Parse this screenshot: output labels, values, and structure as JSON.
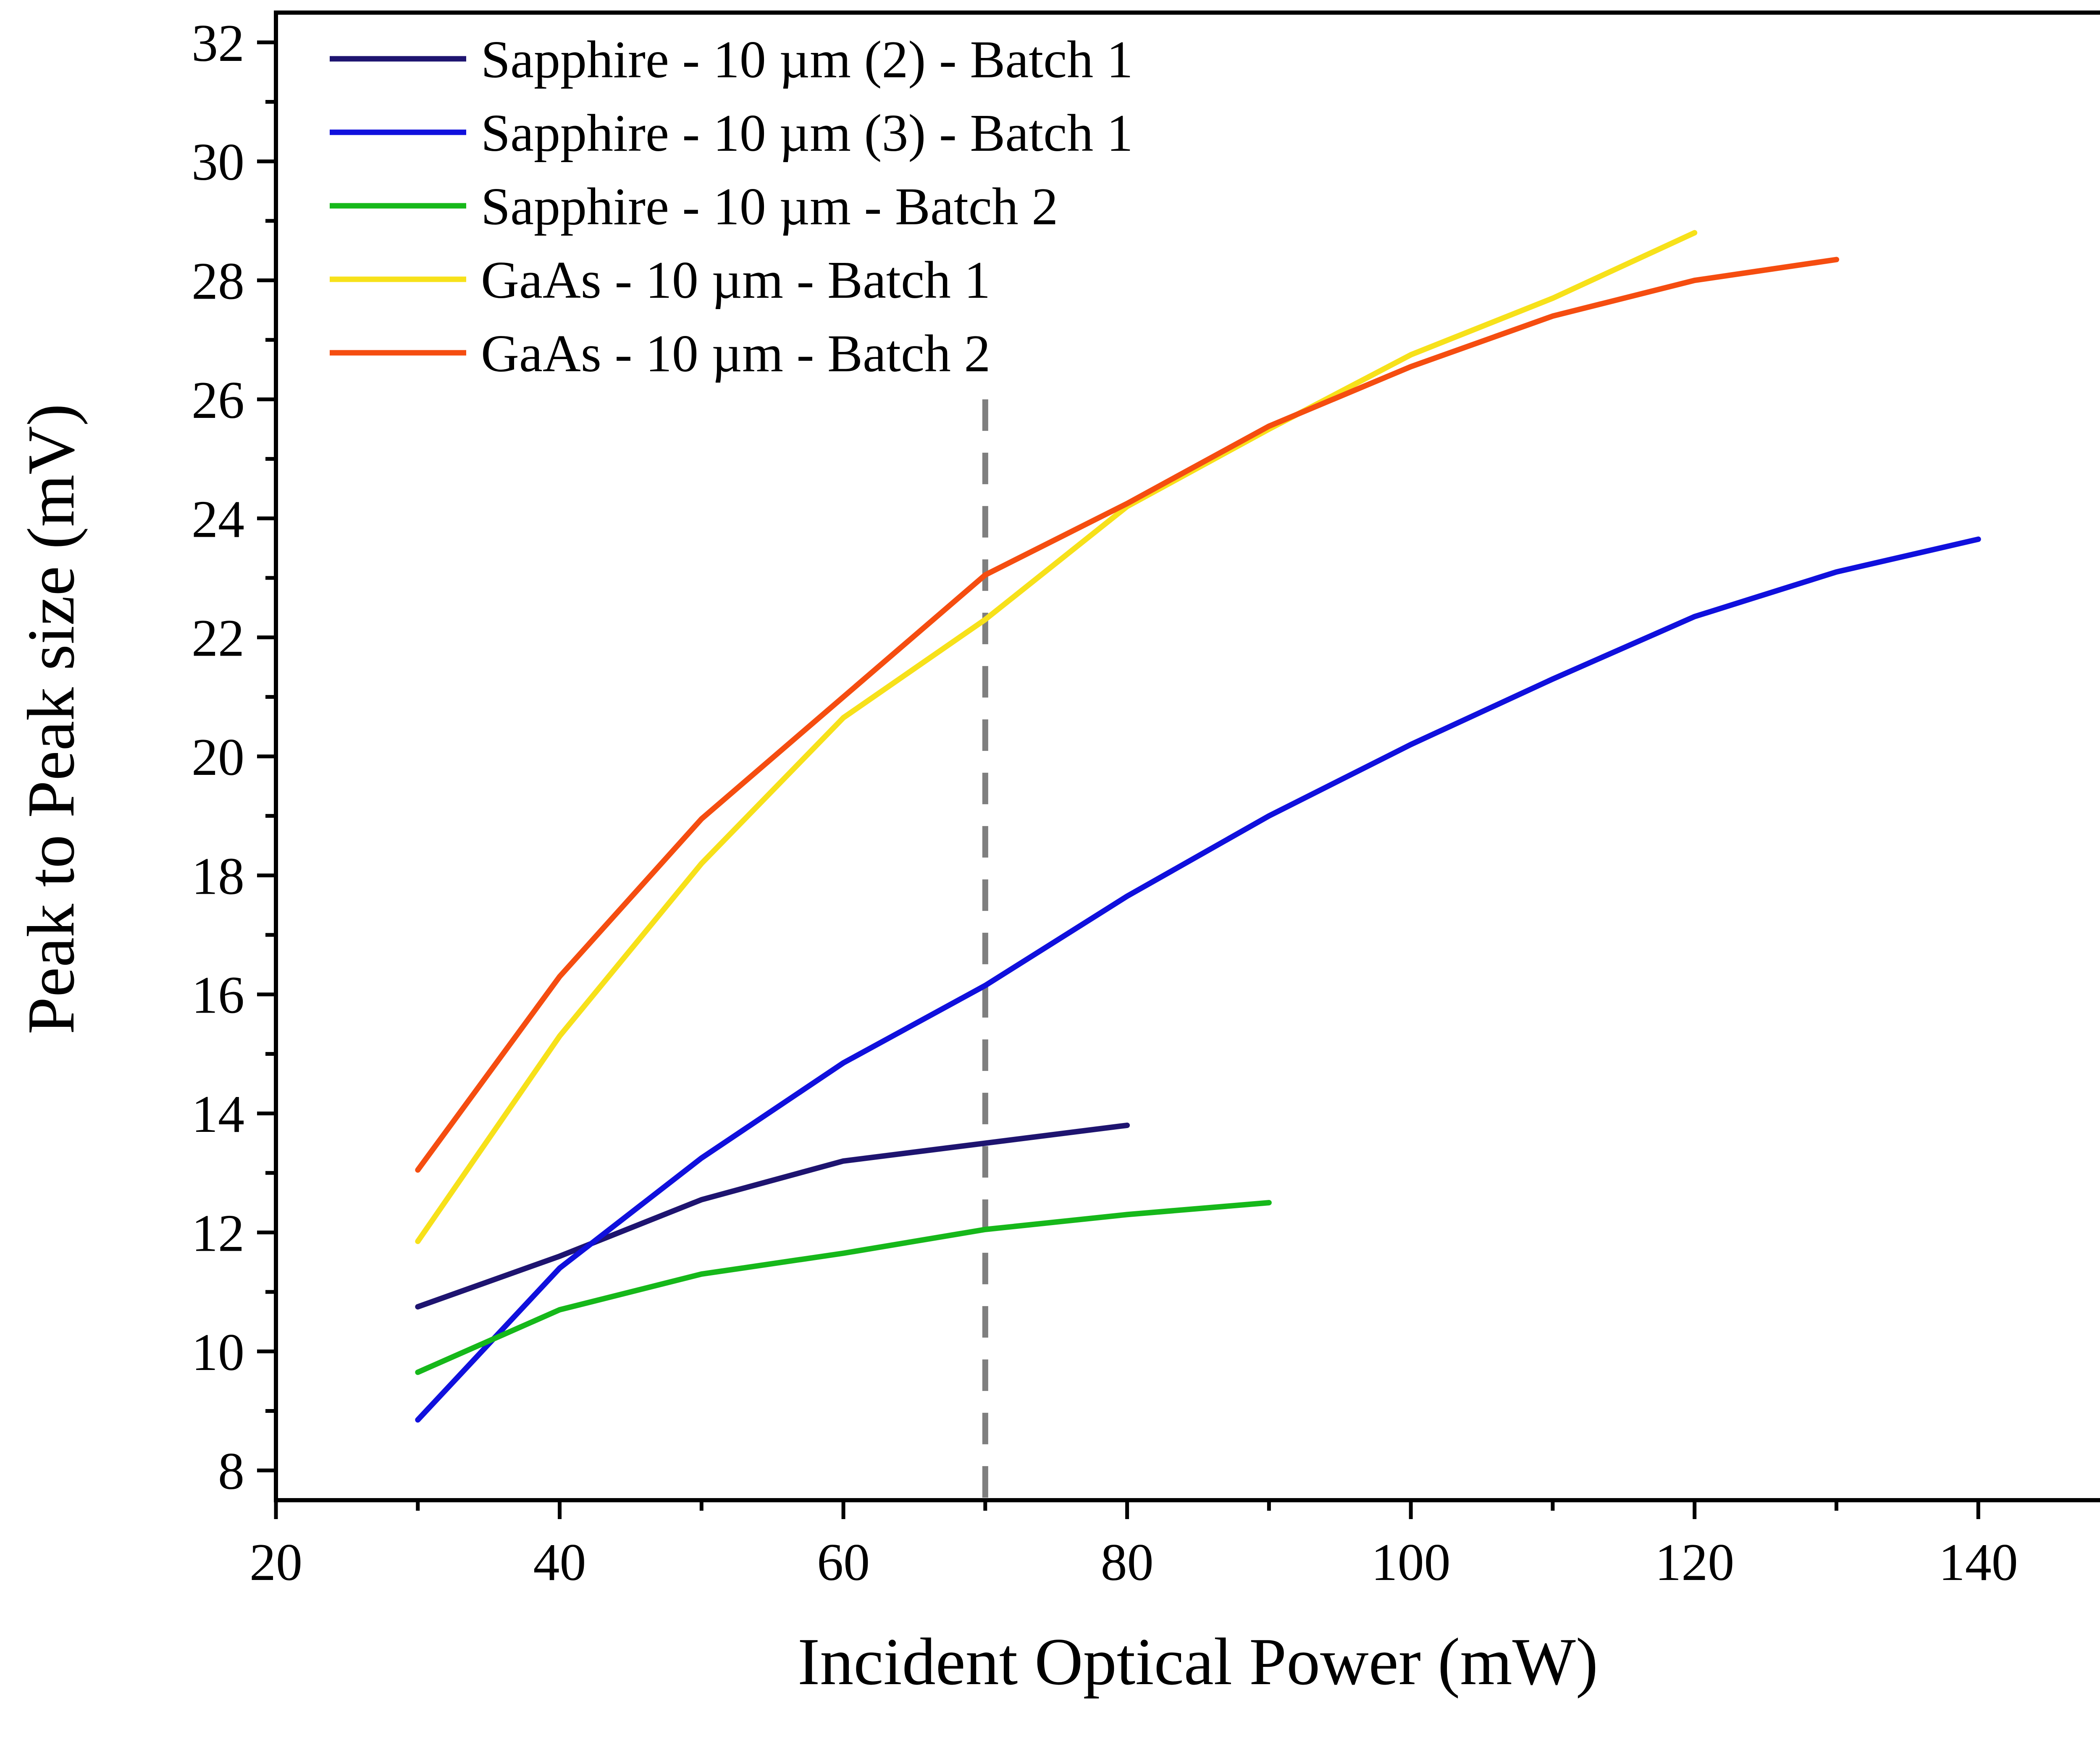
{
  "chart_data": {
    "type": "line",
    "title": "",
    "xlabel": "Incident Optical Power (mW)",
    "ylabel": "Peak to Peak size (mV)",
    "xlim": [
      20,
      150
    ],
    "ylim": [
      7.5,
      32.5
    ],
    "xticks": [
      20,
      40,
      60,
      80,
      100,
      120,
      140
    ],
    "yticks": [
      8,
      10,
      12,
      14,
      16,
      18,
      20,
      22,
      24,
      26,
      28,
      30,
      32
    ],
    "legend_position": "top-left",
    "reference_line": {
      "x": 70,
      "style": "dashed",
      "color": "#7f7f7f"
    },
    "series": [
      {
        "name": "Sapphire - 10 µm (2) - Batch 1",
        "color": "#1e1470",
        "x": [
          30,
          40,
          50,
          60,
          70,
          80
        ],
        "y": [
          10.75,
          11.6,
          12.55,
          13.2,
          13.5,
          13.8
        ]
      },
      {
        "name": "Sapphire - 10 µm (3) - Batch 1",
        "color": "#1010dd",
        "x": [
          30,
          40,
          50,
          60,
          70,
          80,
          90,
          100,
          110,
          120,
          130,
          140
        ],
        "y": [
          8.85,
          11.4,
          13.25,
          14.85,
          16.15,
          17.65,
          19.0,
          20.2,
          21.3,
          22.35,
          23.1,
          23.65
        ]
      },
      {
        "name": "Sapphire - 10 µm - Batch 2",
        "color": "#16b81a",
        "x": [
          30,
          40,
          50,
          60,
          70,
          80,
          90
        ],
        "y": [
          9.65,
          10.7,
          11.3,
          11.65,
          12.05,
          12.3,
          12.5
        ]
      },
      {
        "name": "GaAs - 10 µm - Batch 1",
        "color": "#f7e11a",
        "x": [
          30,
          40,
          50,
          60,
          70,
          80,
          90,
          100,
          110,
          120
        ],
        "y": [
          11.85,
          15.3,
          18.2,
          20.65,
          22.3,
          24.2,
          25.5,
          26.75,
          27.7,
          28.8
        ]
      },
      {
        "name": "GaAs - 10 µm - Batch 2",
        "color": "#f54d10",
        "x": [
          30,
          40,
          50,
          60,
          70,
          80,
          90,
          100,
          110,
          120,
          130
        ],
        "y": [
          13.05,
          16.3,
          18.95,
          21.0,
          23.05,
          24.25,
          25.55,
          26.55,
          27.4,
          28.0,
          28.35
        ]
      }
    ]
  }
}
